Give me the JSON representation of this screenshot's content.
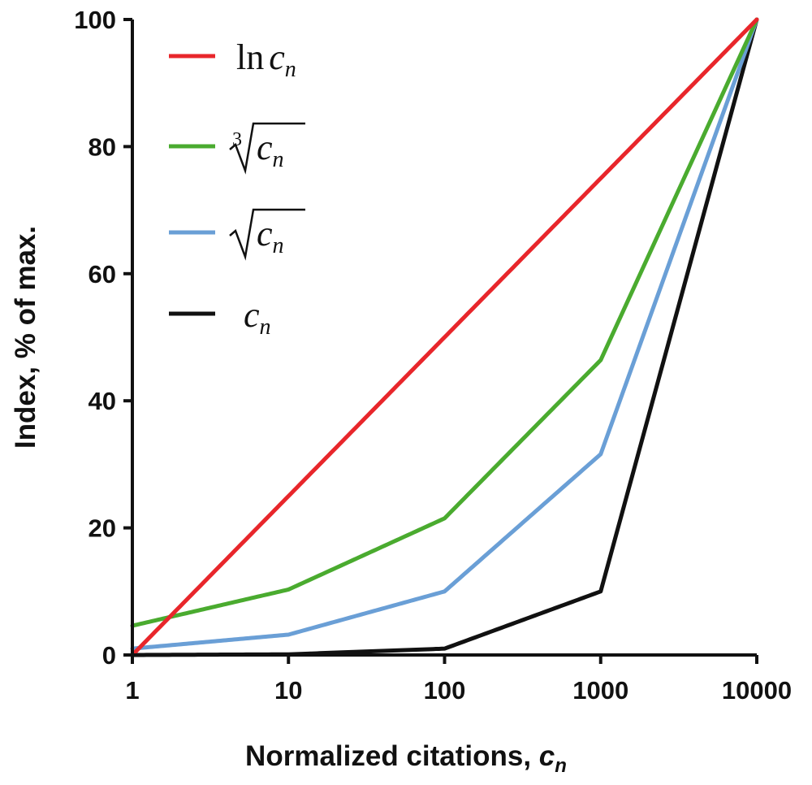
{
  "chart_data": {
    "type": "line",
    "xscale": "log",
    "xlim": [
      1,
      10000
    ],
    "ylim": [
      0,
      100
    ],
    "grid": false,
    "legend_position": "top-left",
    "xlabel": "Normalized citations, ",
    "xlabel_var": "c",
    "xlabel_sub": "n",
    "ylabel": "Index, % of max.",
    "x_ticks": [
      1,
      10,
      100,
      1000,
      10000
    ],
    "x_tick_labels": [
      "1",
      "10",
      "100",
      "1000",
      "10000"
    ],
    "y_ticks": [
      0,
      20,
      40,
      60,
      80,
      100
    ],
    "y_tick_labels": [
      "0",
      "20",
      "40",
      "60",
      "80",
      "100"
    ],
    "series": [
      {
        "name": "ln c_n",
        "legend": {
          "prefix": "ln",
          "var": "c",
          "sub": "n",
          "root": "none",
          "index": ""
        },
        "color": "#e8262b",
        "x": [
          1,
          10000
        ],
        "y": [
          0,
          100
        ]
      },
      {
        "name": "∛c_n",
        "legend": {
          "prefix": "",
          "var": "c",
          "sub": "n",
          "root": "radical",
          "index": "3"
        },
        "color": "#4aab2f",
        "x": [
          1,
          10,
          100,
          1000,
          10000
        ],
        "y": [
          4.6,
          10.3,
          21.5,
          46.4,
          100
        ]
      },
      {
        "name": "√c_n",
        "legend": {
          "prefix": "",
          "var": "c",
          "sub": "n",
          "root": "radical",
          "index": ""
        },
        "color": "#6a9fd6",
        "x": [
          1,
          10,
          100,
          1000,
          10000
        ],
        "y": [
          1,
          3.2,
          10,
          31.6,
          100
        ]
      },
      {
        "name": "c_n",
        "legend": {
          "prefix": "",
          "var": "c",
          "sub": "n",
          "root": "none",
          "index": ""
        },
        "color": "#111111",
        "x": [
          1,
          10,
          100,
          1000,
          10000
        ],
        "y": [
          0,
          0.1,
          1,
          10,
          100
        ]
      }
    ]
  }
}
